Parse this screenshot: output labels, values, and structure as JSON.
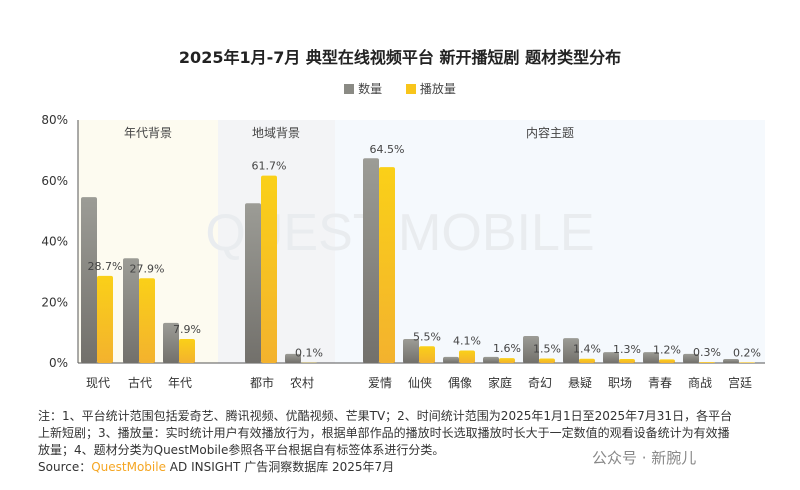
{
  "chart_data": {
    "type": "bar",
    "title": "2025年1月-7月 典型在线视频平台 新开播短剧 题材类型分布",
    "legend": [
      {
        "name": "数量",
        "color": "#8a8a84"
      },
      {
        "name": "播放量",
        "color": "#f8c51b"
      }
    ],
    "legend_placement": "top",
    "ylim": [
      0,
      80
    ],
    "yticks": [
      "0%",
      "20%",
      "40%",
      "60%",
      "80%"
    ],
    "groups": [
      {
        "label": "年代背景",
        "categories": [
          "现代",
          "古代",
          "年代"
        ]
      },
      {
        "label": "地域背景",
        "categories": [
          "都市",
          "农村"
        ]
      },
      {
        "label": "内容主题",
        "categories": [
          "爱情",
          "仙侠",
          "偶像",
          "家庭",
          "奇幻",
          "悬疑",
          "职场",
          "青春",
          "商战",
          "宫廷"
        ]
      }
    ],
    "categories": [
      "现代",
      "古代",
      "年代",
      "都市",
      "农村",
      "爱情",
      "仙侠",
      "偶像",
      "家庭",
      "奇幻",
      "悬疑",
      "职场",
      "青春",
      "商战",
      "宫廷"
    ],
    "series": [
      {
        "name": "数量",
        "values": [
          54.6,
          34.5,
          13.2,
          52.6,
          3.0,
          67.4,
          7.9,
          2.0,
          2.0,
          8.9,
          8.2,
          3.6,
          3.6,
          3.0,
          1.3
        ]
      },
      {
        "name": "播放量",
        "values": [
          28.7,
          27.9,
          7.9,
          61.7,
          0.1,
          64.5,
          5.5,
          4.1,
          1.6,
          1.5,
          1.4,
          1.3,
          1.2,
          0.3,
          0.2
        ],
        "labels": [
          "28.7%",
          "27.9%",
          "7.9%",
          "61.7%",
          "0.1%",
          "64.5%",
          "5.5%",
          "4.1%",
          "1.6%",
          "1.5%",
          "1.4%",
          "1.3%",
          "1.2%",
          "0.3%",
          "0.2%"
        ]
      }
    ]
  },
  "notes": "注：1、平台统计范围包括爱奇艺、腾讯视频、优酷视频、芒果TV；2、时间统计范围为2025年1月1日至2025年7月31日，各平台上新短剧；3、播放量：实时统计用户有效播放行为，根据单部作品的播放时长选取播放时长大于一定数值的观看设备统计为有效播放量；4、题材分类为QuestMobile参照各平台根据自有标签体系进行分类。",
  "source": {
    "prefix": "Source：",
    "brand": "QuestMobile",
    "rest": " AD INSIGHT 广告洞察数据库 2025年7月"
  },
  "watermark": "公众号 · 新腕儿",
  "logo_watermark": "QUEST MOBILE"
}
